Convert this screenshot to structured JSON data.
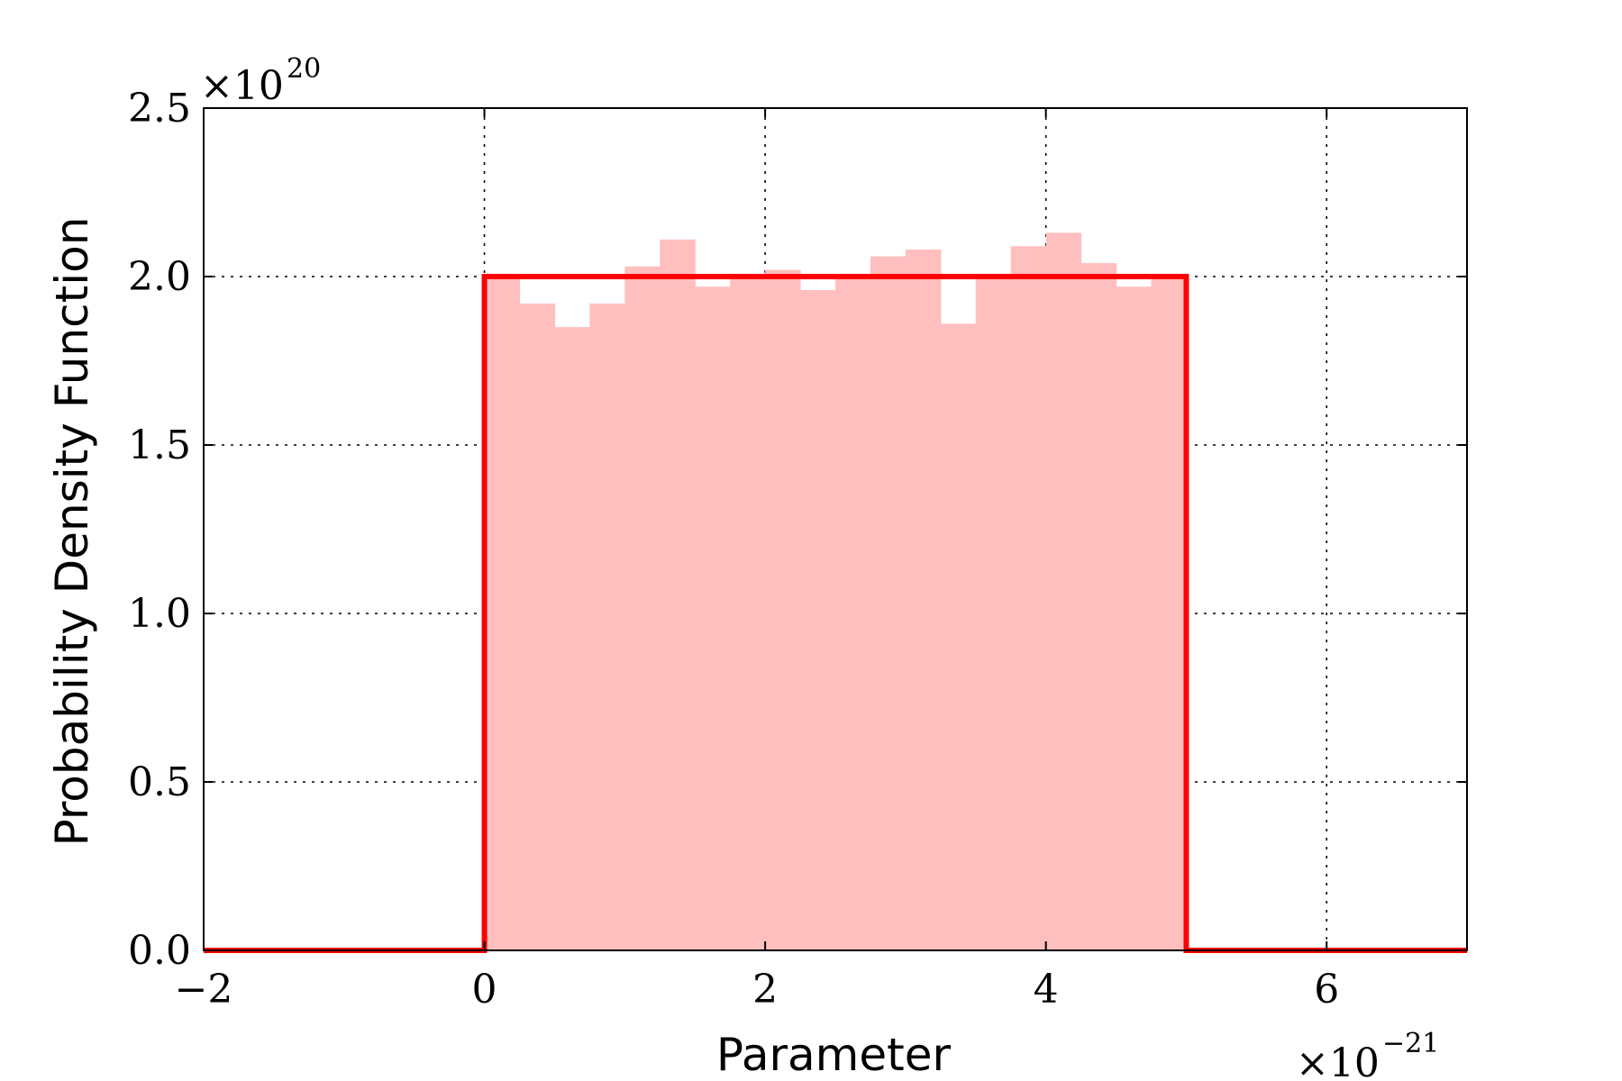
{
  "chart_data": {
    "type": "bar",
    "xlabel": "Parameter",
    "ylabel": "Probability Density Function",
    "x_multiplier": {
      "base": "×10",
      "exponent": "−21"
    },
    "y_multiplier": {
      "base": "×10",
      "exponent": "20"
    },
    "xlim": [
      -2,
      7
    ],
    "ylim": [
      0,
      2.5
    ],
    "x_ticks": [
      -2,
      0,
      2,
      4,
      6
    ],
    "x_tick_labels": [
      "−2",
      "0",
      "2",
      "4",
      "6"
    ],
    "y_ticks": [
      0.0,
      0.5,
      1.0,
      1.5,
      2.0,
      2.5
    ],
    "y_tick_labels": [
      "0.0",
      "0.5",
      "1.0",
      "1.5",
      "2.0",
      "2.5"
    ],
    "grid": true,
    "histogram": {
      "bin_edges": [
        0,
        0.25,
        0.5,
        0.75,
        1.0,
        1.25,
        1.5,
        1.75,
        2.0,
        2.25,
        2.5,
        2.75,
        3.0,
        3.25,
        3.5,
        3.75,
        4.0,
        4.25,
        4.5,
        4.75,
        5.0
      ],
      "values": [
        2.0,
        1.92,
        1.85,
        1.92,
        2.03,
        2.11,
        1.97,
        2.0,
        2.02,
        1.96,
        2.0,
        2.06,
        2.08,
        1.86,
        2.0,
        2.09,
        2.13,
        2.04,
        1.97,
        2.0
      ],
      "color": "#ffbfbf"
    },
    "pdf_line": {
      "x": [
        -2,
        0,
        0,
        5,
        5,
        7
      ],
      "y": [
        0,
        0,
        2.0,
        2.0,
        0,
        0
      ],
      "color": "#ff0000"
    }
  }
}
